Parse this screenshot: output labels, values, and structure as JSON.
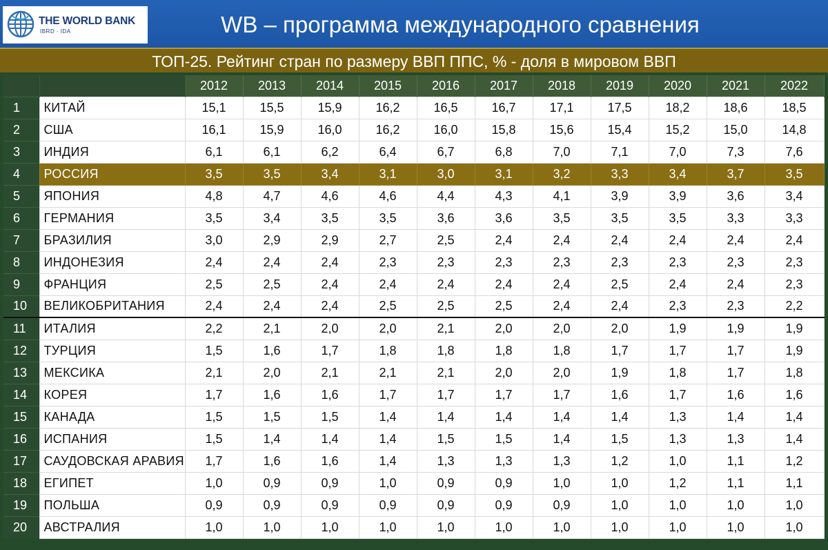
{
  "header": {
    "logo_name": "THE WORLD BANK",
    "logo_sub": "IBRD · IDA",
    "title": "WB – программа международного сравнения"
  },
  "subtitle": "ТОП-25. Рейтинг стран по размеру ВВП ППС, % - доля в мировом ВВП",
  "table": {
    "years": [
      "2012",
      "2013",
      "2014",
      "2015",
      "2016",
      "2017",
      "2018",
      "2019",
      "2020",
      "2021",
      "2022"
    ],
    "rows": [
      {
        "rank": "1",
        "country": "КИТАЙ",
        "values": [
          "15,1",
          "15,5",
          "15,9",
          "16,2",
          "16,5",
          "16,7",
          "17,1",
          "17,5",
          "18,2",
          "18,6",
          "18,5"
        ]
      },
      {
        "rank": "2",
        "country": "США",
        "values": [
          "16,1",
          "15,9",
          "16,0",
          "16,2",
          "16,0",
          "15,8",
          "15,6",
          "15,4",
          "15,2",
          "15,0",
          "14,8"
        ]
      },
      {
        "rank": "3",
        "country": "ИНДИЯ",
        "values": [
          "6,1",
          "6,1",
          "6,2",
          "6,4",
          "6,7",
          "6,8",
          "7,0",
          "7,1",
          "7,0",
          "7,3",
          "7,6"
        ]
      },
      {
        "rank": "4",
        "country": "РОССИЯ",
        "values": [
          "3,5",
          "3,5",
          "3,4",
          "3,1",
          "3,0",
          "3,1",
          "3,2",
          "3,3",
          "3,4",
          "3,7",
          "3,5"
        ]
      },
      {
        "rank": "5",
        "country": "ЯПОНИЯ",
        "values": [
          "4,8",
          "4,7",
          "4,6",
          "4,6",
          "4,4",
          "4,3",
          "4,1",
          "3,9",
          "3,9",
          "3,6",
          "3,4"
        ]
      },
      {
        "rank": "6",
        "country": "ГЕРМАНИЯ",
        "values": [
          "3,5",
          "3,4",
          "3,5",
          "3,5",
          "3,6",
          "3,6",
          "3,5",
          "3,5",
          "3,5",
          "3,3",
          "3,3"
        ]
      },
      {
        "rank": "7",
        "country": "БРАЗИЛИЯ",
        "values": [
          "3,0",
          "2,9",
          "2,9",
          "2,7",
          "2,5",
          "2,4",
          "2,4",
          "2,4",
          "2,4",
          "2,4",
          "2,4"
        ]
      },
      {
        "rank": "8",
        "country": "ИНДОНЕЗИЯ",
        "values": [
          "2,4",
          "2,4",
          "2,4",
          "2,3",
          "2,3",
          "2,3",
          "2,3",
          "2,3",
          "2,3",
          "2,3",
          "2,3"
        ]
      },
      {
        "rank": "9",
        "country": "ФРАНЦИЯ",
        "values": [
          "2,5",
          "2,5",
          "2,4",
          "2,4",
          "2,4",
          "2,4",
          "2,4",
          "2,5",
          "2,4",
          "2,4",
          "2,3"
        ]
      },
      {
        "rank": "10",
        "country": "ВЕЛИКОБРИТАНИЯ",
        "values": [
          "2,4",
          "2,4",
          "2,4",
          "2,5",
          "2,5",
          "2,5",
          "2,4",
          "2,4",
          "2,3",
          "2,3",
          "2,2"
        ]
      },
      {
        "rank": "11",
        "country": "ИТАЛИЯ",
        "values": [
          "2,2",
          "2,1",
          "2,0",
          "2,0",
          "2,1",
          "2,0",
          "2,0",
          "2,0",
          "1,9",
          "1,9",
          "1,9"
        ]
      },
      {
        "rank": "12",
        "country": "ТУРЦИЯ",
        "values": [
          "1,5",
          "1,6",
          "1,7",
          "1,8",
          "1,8",
          "1,8",
          "1,8",
          "1,7",
          "1,7",
          "1,7",
          "1,9"
        ]
      },
      {
        "rank": "13",
        "country": "МЕКСИКА",
        "values": [
          "2,1",
          "2,0",
          "2,1",
          "2,1",
          "2,1",
          "2,0",
          "2,0",
          "1,9",
          "1,8",
          "1,7",
          "1,8"
        ]
      },
      {
        "rank": "14",
        "country": "КОРЕЯ",
        "values": [
          "1,7",
          "1,6",
          "1,6",
          "1,7",
          "1,7",
          "1,7",
          "1,7",
          "1,6",
          "1,7",
          "1,6",
          "1,6"
        ]
      },
      {
        "rank": "15",
        "country": "КАНАДА",
        "values": [
          "1,5",
          "1,5",
          "1,5",
          "1,4",
          "1,4",
          "1,4",
          "1,4",
          "1,4",
          "1,3",
          "1,4",
          "1,4"
        ]
      },
      {
        "rank": "16",
        "country": "ИСПАНИЯ",
        "values": [
          "1,5",
          "1,4",
          "1,4",
          "1,4",
          "1,5",
          "1,5",
          "1,4",
          "1,5",
          "1,3",
          "1,3",
          "1,4"
        ]
      },
      {
        "rank": "17",
        "country": "САУДОВСКАЯ АРАВИЯ",
        "values": [
          "1,7",
          "1,6",
          "1,6",
          "1,4",
          "1,3",
          "1,3",
          "1,3",
          "1,2",
          "1,0",
          "1,1",
          "1,2"
        ]
      },
      {
        "rank": "18",
        "country": "ЕГИПЕТ",
        "values": [
          "1,0",
          "0,9",
          "0,9",
          "1,0",
          "0,9",
          "0,9",
          "1,0",
          "1,0",
          "1,2",
          "1,1",
          "1,1"
        ]
      },
      {
        "rank": "19",
        "country": "ПОЛЬША",
        "values": [
          "0,9",
          "0,9",
          "0,9",
          "0,9",
          "0,9",
          "0,9",
          "0,9",
          "1,0",
          "1,0",
          "1,0",
          "1,0"
        ]
      },
      {
        "rank": "20",
        "country": "АВСТРАЛИЯ",
        "values": [
          "1,0",
          "1,0",
          "1,0",
          "1,0",
          "1,0",
          "1,0",
          "1,0",
          "1,0",
          "1,0",
          "1,0",
          "1,0"
        ]
      }
    ],
    "highlight_country": "РОССИЯ",
    "highlight_color": "#8a6e14",
    "frame_color": "#244a2b",
    "banner_color": "#1d56a7"
  }
}
